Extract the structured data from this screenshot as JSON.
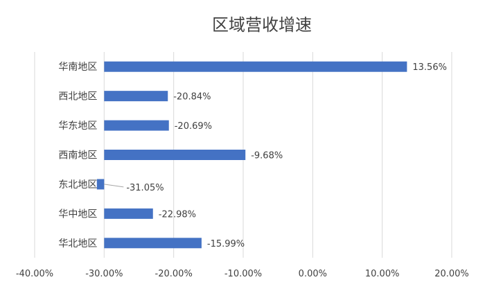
{
  "chart_data": {
    "type": "bar",
    "orientation": "horizontal",
    "title": "区域营收增速",
    "xlabel": "",
    "ylabel": "",
    "xlim": [
      -40,
      20
    ],
    "x_ticks": [
      -40,
      -30,
      -20,
      -10,
      0,
      10,
      20
    ],
    "x_tick_labels": [
      "-40.00%",
      "-30.00%",
      "-20.00%",
      "-10.00%",
      "0.00%",
      "10.00%",
      "20.00%"
    ],
    "categories": [
      "华南地区",
      "西北地区",
      "华东地区",
      "西南地区",
      "东北地区",
      "华中地区",
      "华北地区"
    ],
    "values": [
      13.56,
      -20.84,
      -20.69,
      -9.68,
      -31.05,
      -22.98,
      -15.99
    ],
    "data_labels": [
      "13.56%",
      "-20.84%",
      "-20.69%",
      "-9.68%",
      "-31.05%",
      "-22.98%",
      "-15.99%"
    ],
    "grid": "vertical",
    "legend": "none",
    "bar_color": "#4472C4",
    "grid_color": "#D9D9D9"
  }
}
